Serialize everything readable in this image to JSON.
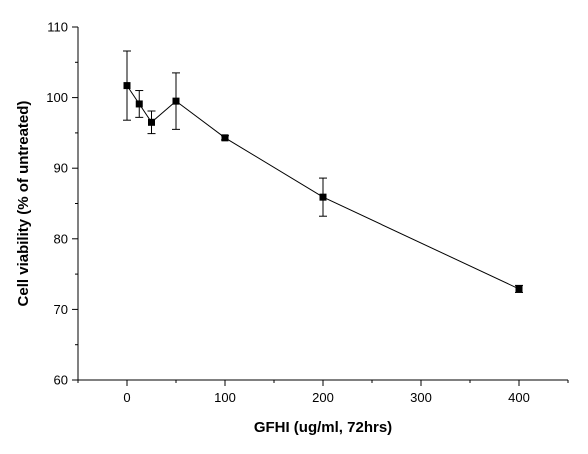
{
  "chart_data": {
    "type": "line",
    "xlabel": "GFHI (ug/ml, 72hrs)",
    "ylabel": "Cell viability (% of untreated)",
    "xlim": [
      -50,
      450
    ],
    "ylim": [
      60,
      110
    ],
    "x_ticks": [
      0,
      100,
      200,
      300,
      400
    ],
    "y_ticks": [
      60,
      70,
      80,
      90,
      100,
      110
    ],
    "grid": false,
    "legend": "none",
    "series": [
      {
        "x": [
          0,
          12.5,
          25,
          50,
          100,
          200,
          400
        ],
        "y": [
          101.7,
          99.1,
          96.5,
          99.5,
          94.3,
          85.9,
          72.9
        ],
        "error": [
          4.9,
          1.9,
          1.6,
          4.0,
          0.3,
          2.7,
          0.5
        ]
      }
    ],
    "colors": {
      "line": "#000000",
      "marker": "#000000"
    }
  }
}
